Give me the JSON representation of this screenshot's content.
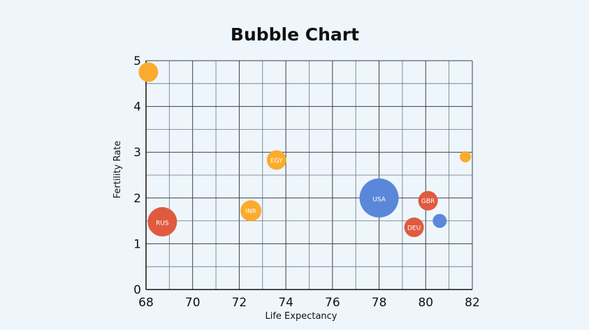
{
  "chart_data": {
    "type": "scatter",
    "title": "Bubble Chart",
    "xlabel": "Life Expectancy",
    "ylabel": "Fertility Rate",
    "xlim": [
      68,
      82
    ],
    "ylim": [
      0,
      5
    ],
    "xticks": [
      68,
      70,
      72,
      74,
      76,
      78,
      80,
      82
    ],
    "yticks": [
      0,
      1,
      2,
      3,
      4,
      5
    ],
    "grid": true,
    "legend": "none",
    "colors": {
      "red": "#e05a3f",
      "blue": "#5b87db",
      "orange": "#fbab2d"
    },
    "points": [
      {
        "label": "",
        "x": 68.1,
        "y": 4.75,
        "size": 14,
        "color": "orange"
      },
      {
        "label": "RUS",
        "x": 68.7,
        "y": 1.48,
        "size": 21,
        "color": "red"
      },
      {
        "label": "INR",
        "x": 72.5,
        "y": 1.72,
        "size": 15,
        "color": "orange"
      },
      {
        "label": "EGY",
        "x": 73.6,
        "y": 2.83,
        "size": 14,
        "color": "orange"
      },
      {
        "label": "USA",
        "x": 78.0,
        "y": 2.0,
        "size": 28,
        "color": "blue"
      },
      {
        "label": "DEU",
        "x": 79.5,
        "y": 1.36,
        "size": 14,
        "color": "red"
      },
      {
        "label": "GBR",
        "x": 80.1,
        "y": 1.94,
        "size": 14,
        "color": "red"
      },
      {
        "label": "",
        "x": 80.6,
        "y": 1.5,
        "size": 10,
        "color": "blue"
      },
      {
        "label": "",
        "x": 81.7,
        "y": 2.9,
        "size": 8,
        "color": "orange"
      }
    ]
  }
}
